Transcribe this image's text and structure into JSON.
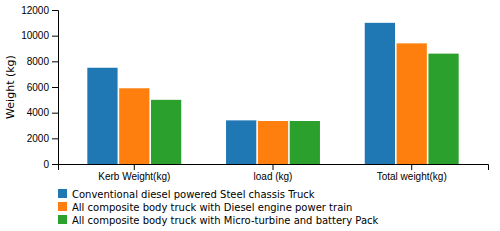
{
  "chart_data": {
    "type": "bar",
    "categories": [
      "Kerb Weight(kg)",
      "load (kg)",
      "Total weight(kg)"
    ],
    "series": [
      {
        "name": "Conventional diesel powered Steel chassis Truck",
        "values": [
          7500,
          3400,
          11000
        ]
      },
      {
        "name": "All composite body truck with Diesel engine power train",
        "values": [
          5900,
          3350,
          9400
        ]
      },
      {
        "name": "All composite body truck with Micro-turbine and battery Pack",
        "values": [
          5000,
          3350,
          8600
        ]
      }
    ],
    "ylabel": "Weight (kg)",
    "ylim": [
      0,
      12000
    ],
    "yticks": [
      0,
      2000,
      4000,
      6000,
      8000,
      10000,
      12000
    ],
    "grid": false
  }
}
